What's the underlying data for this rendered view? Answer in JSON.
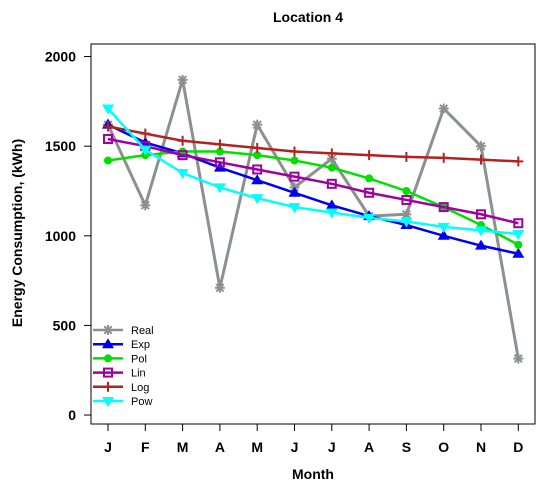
{
  "chart_data": {
    "type": "line",
    "title": "Location 4",
    "xlabel": "Month",
    "ylabel": "Energy Consumption, (kWh)",
    "categories": [
      "J",
      "F",
      "M",
      "A",
      "M",
      "J",
      "J",
      "A",
      "S",
      "O",
      "N",
      "D"
    ],
    "ylim": [
      -50,
      2070
    ],
    "yticks": [
      0,
      500,
      1000,
      1500,
      2000
    ],
    "grid": false,
    "legend_position": "bottom-left",
    "series": [
      {
        "name": "Real",
        "color": "#8c9190",
        "marker": "star",
        "values": [
          1620,
          1170,
          1870,
          710,
          1620,
          1270,
          1430,
          1110,
          1120,
          1710,
          1500,
          315
        ]
      },
      {
        "name": "Exp",
        "color": "#0000ee",
        "marker": "triangle",
        "values": [
          1620,
          1520,
          1460,
          1380,
          1310,
          1240,
          1170,
          1110,
          1060,
          1000,
          945,
          900
        ]
      },
      {
        "name": "Pol",
        "color": "#00e000",
        "marker": "circle",
        "values": [
          1420,
          1450,
          1470,
          1470,
          1450,
          1420,
          1380,
          1320,
          1250,
          1160,
          1060,
          950
        ]
      },
      {
        "name": "Lin",
        "color": "#a000a0",
        "marker": "square",
        "values": [
          1540,
          1500,
          1450,
          1410,
          1370,
          1330,
          1290,
          1240,
          1200,
          1160,
          1120,
          1070
        ]
      },
      {
        "name": "Log",
        "color": "#b22222",
        "marker": "plus",
        "values": [
          1610,
          1570,
          1530,
          1510,
          1490,
          1470,
          1460,
          1450,
          1440,
          1435,
          1425,
          1415
        ]
      },
      {
        "name": "Pow",
        "color": "#00ffff",
        "marker": "invtriangle",
        "values": [
          1710,
          1480,
          1350,
          1270,
          1210,
          1160,
          1130,
          1100,
          1080,
          1050,
          1030,
          1010
        ]
      }
    ]
  }
}
